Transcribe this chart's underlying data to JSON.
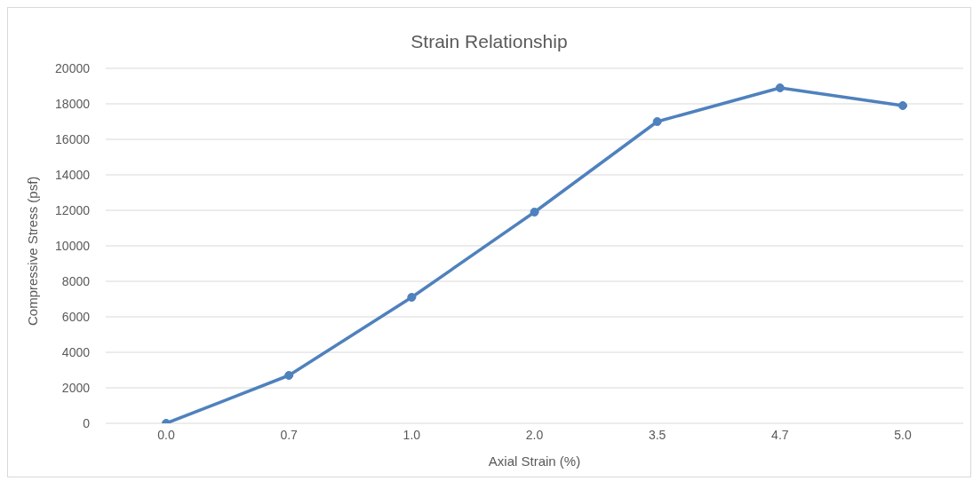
{
  "chart_data": {
    "type": "line",
    "title": "Strain Relationship",
    "xlabel": "Axial Strain (%)",
    "ylabel": "Compressive Stress (psf)",
    "categories": [
      "0.0",
      "0.7",
      "1.0",
      "2.0",
      "3.5",
      "4.7",
      "5.0"
    ],
    "series": [
      {
        "color": "#4f81bd",
        "values": [
          0,
          2700,
          7100,
          11900,
          17000,
          18900,
          17900
        ]
      }
    ],
    "ylim": [
      0,
      20000
    ],
    "yticks": [
      0,
      2000,
      4000,
      6000,
      8000,
      10000,
      12000,
      14000,
      16000,
      18000,
      20000
    ],
    "grid": "y",
    "legend": false,
    "marker": "circle",
    "line_style": "solid"
  }
}
